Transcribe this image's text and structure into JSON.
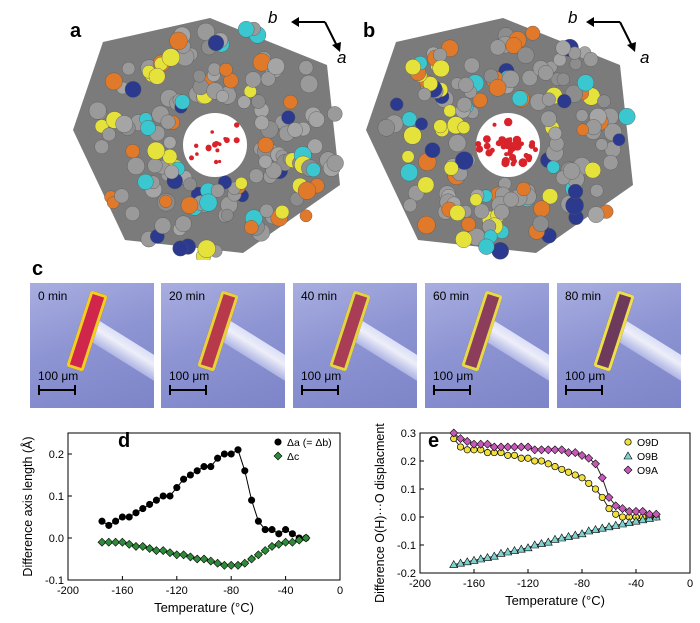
{
  "panels": {
    "a": "a",
    "b": "b",
    "c": "c",
    "d": "d",
    "e": "e"
  },
  "axes_glyph": {
    "b": "b",
    "a": "a"
  },
  "photos": [
    {
      "time": "0 min",
      "crystal_color": "#d0264c",
      "accent": "#f0d020"
    },
    {
      "time": "20 min",
      "crystal_color": "#b83a4a",
      "accent": "#e6d23a"
    },
    {
      "time": "40 min",
      "crystal_color": "#a83d55",
      "accent": "#e0d640"
    },
    {
      "time": "60 min",
      "crystal_color": "#8c3d5c",
      "accent": "#e5db46"
    },
    {
      "time": "80 min",
      "crystal_color": "#6e3a5c",
      "accent": "#ede04b"
    }
  ],
  "scale_label": "100 μm",
  "chart_data": [
    {
      "type": "scatter",
      "panel": "d",
      "xlabel": "Temperature (°C)",
      "ylabel": "Difference axis length (Å)",
      "xlim": [
        -200,
        0
      ],
      "ylim": [
        -0.1,
        0.25
      ],
      "xticks": [
        "-200",
        "-160",
        "-120",
        "-80",
        "-40",
        "0"
      ],
      "yticks": [
        "-0.1",
        "0.0",
        "0.1",
        "0.2"
      ],
      "series": [
        {
          "name": "Δa (= Δb)",
          "color": "#000000",
          "marker": "circle",
          "x": [
            -175,
            -170,
            -165,
            -160,
            -155,
            -150,
            -145,
            -140,
            -135,
            -130,
            -125,
            -120,
            -115,
            -110,
            -105,
            -100,
            -95,
            -90,
            -85,
            -80,
            -75,
            -70,
            -65,
            -60,
            -55,
            -50,
            -45,
            -40,
            -35,
            -30,
            -25
          ],
          "y": [
            0.04,
            0.03,
            0.04,
            0.05,
            0.05,
            0.06,
            0.07,
            0.08,
            0.09,
            0.1,
            0.1,
            0.12,
            0.14,
            0.15,
            0.16,
            0.17,
            0.17,
            0.19,
            0.2,
            0.2,
            0.21,
            0.16,
            0.09,
            0.04,
            0.02,
            0.02,
            0.01,
            0.02,
            0.01,
            0.0,
            0.0
          ]
        },
        {
          "name": "Δc",
          "color": "#2e8b3a",
          "marker": "diamond",
          "x": [
            -175,
            -170,
            -165,
            -160,
            -155,
            -150,
            -145,
            -140,
            -135,
            -130,
            -125,
            -120,
            -115,
            -110,
            -105,
            -100,
            -95,
            -90,
            -85,
            -80,
            -75,
            -70,
            -65,
            -60,
            -55,
            -50,
            -45,
            -40,
            -35,
            -30,
            -25
          ],
          "y": [
            -0.01,
            -0.01,
            -0.01,
            -0.01,
            -0.015,
            -0.02,
            -0.02,
            -0.025,
            -0.03,
            -0.03,
            -0.035,
            -0.04,
            -0.04,
            -0.045,
            -0.05,
            -0.05,
            -0.055,
            -0.06,
            -0.065,
            -0.065,
            -0.065,
            -0.06,
            -0.05,
            -0.04,
            -0.03,
            -0.02,
            -0.015,
            -0.01,
            -0.01,
            -0.005,
            0.0
          ]
        }
      ],
      "legend_position": "top-right"
    },
    {
      "type": "scatter",
      "panel": "e",
      "xlabel": "Temperature (°C)",
      "ylabel": "Difference O(H)···O displacment (Å)",
      "xlim": [
        -200,
        0
      ],
      "ylim": [
        -0.2,
        0.3
      ],
      "xticks": [
        "-200",
        "-160",
        "-120",
        "-80",
        "-40",
        "0"
      ],
      "yticks": [
        "-0.2",
        "-0.1",
        "0.0",
        "0.1",
        "0.2",
        "0.3"
      ],
      "series": [
        {
          "name": "O9D",
          "color": "#f2e03a",
          "marker": "circle",
          "x": [
            -175,
            -170,
            -165,
            -160,
            -155,
            -150,
            -145,
            -140,
            -135,
            -130,
            -125,
            -120,
            -115,
            -110,
            -105,
            -100,
            -95,
            -90,
            -85,
            -80,
            -75,
            -70,
            -65,
            -60,
            -55,
            -50,
            -45,
            -40,
            -35,
            -30,
            -25
          ],
          "y": [
            0.28,
            0.25,
            0.24,
            0.24,
            0.24,
            0.23,
            0.23,
            0.23,
            0.22,
            0.22,
            0.21,
            0.21,
            0.2,
            0.2,
            0.19,
            0.18,
            0.17,
            0.16,
            0.15,
            0.14,
            0.12,
            0.1,
            0.07,
            0.03,
            0.01,
            0.0,
            0.0,
            0.0,
            0.0,
            0.0,
            0.0
          ]
        },
        {
          "name": "O9B",
          "color": "#7fd3cf",
          "marker": "triangle",
          "x": [
            -175,
            -170,
            -165,
            -160,
            -155,
            -150,
            -145,
            -140,
            -135,
            -130,
            -125,
            -120,
            -115,
            -110,
            -105,
            -100,
            -95,
            -90,
            -85,
            -80,
            -75,
            -70,
            -65,
            -60,
            -55,
            -50,
            -45,
            -40,
            -35,
            -30,
            -25
          ],
          "y": [
            -0.17,
            -0.165,
            -0.16,
            -0.155,
            -0.15,
            -0.145,
            -0.14,
            -0.13,
            -0.125,
            -0.12,
            -0.115,
            -0.11,
            -0.1,
            -0.095,
            -0.09,
            -0.08,
            -0.075,
            -0.07,
            -0.065,
            -0.06,
            -0.05,
            -0.045,
            -0.04,
            -0.035,
            -0.03,
            -0.025,
            -0.02,
            -0.015,
            -0.01,
            -0.005,
            0.0
          ]
        },
        {
          "name": "O9A",
          "color": "#c659b8",
          "marker": "diamond",
          "x": [
            -175,
            -170,
            -165,
            -160,
            -155,
            -150,
            -145,
            -140,
            -135,
            -130,
            -125,
            -120,
            -115,
            -110,
            -105,
            -100,
            -95,
            -90,
            -85,
            -80,
            -75,
            -70,
            -65,
            -60,
            -55,
            -50,
            -45,
            -40,
            -35,
            -30,
            -25
          ],
          "y": [
            0.3,
            0.28,
            0.27,
            0.26,
            0.26,
            0.26,
            0.25,
            0.25,
            0.25,
            0.25,
            0.25,
            0.25,
            0.24,
            0.24,
            0.24,
            0.24,
            0.24,
            0.23,
            0.23,
            0.22,
            0.21,
            0.19,
            0.14,
            0.07,
            0.04,
            0.03,
            0.02,
            0.02,
            0.02,
            0.01,
            0.01
          ]
        }
      ],
      "legend_position": "top-right"
    }
  ]
}
